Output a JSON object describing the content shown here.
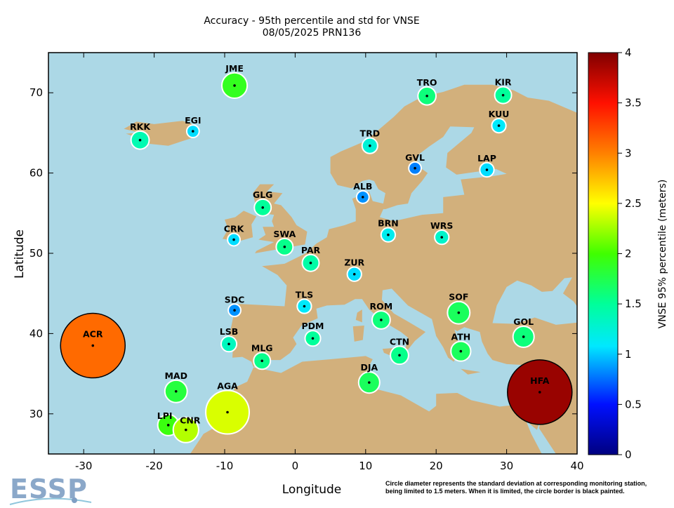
{
  "title": "Accuracy - 95th percentile and std for VNSE",
  "subtitle": "08/05/2025 PRN136",
  "logo_text": "ESSP",
  "footnote_line1": "Circle diameter represents the standard deviation at corresponding monitoring station,",
  "footnote_line2": "being limited to 1.5 meters. When it is limited, the circle border is black painted.",
  "chart_data": {
    "type": "scatter",
    "xlabel": "Longitude",
    "ylabel": "Latitude",
    "colorbar_label": "VNSE 95% percentile (meters)",
    "xlim": [
      -35,
      40
    ],
    "ylim": [
      25,
      75
    ],
    "x_ticks": [
      -30,
      -20,
      -10,
      0,
      10,
      20,
      30,
      40
    ],
    "y_ticks": [
      30,
      40,
      50,
      60,
      70
    ],
    "colorbar_range": [
      0,
      4
    ],
    "colorbar_ticks": [
      "0",
      "0.5",
      "1",
      "1.5",
      "2",
      "2.5",
      "3",
      "3.5",
      "4"
    ],
    "colormap": "jet",
    "std_limit_m": 1.5,
    "colors": {
      "sea": "#acd8e6",
      "land": "#d2b07c"
    },
    "stations": [
      {
        "code": "JME",
        "lon": -8.6,
        "lat": 70.9,
        "vnse95": 1.9,
        "std": 0.59,
        "limited": false
      },
      {
        "code": "TRO",
        "lon": 18.7,
        "lat": 69.6,
        "vnse95": 1.6,
        "std": 0.42,
        "limited": false
      },
      {
        "code": "KIR",
        "lon": 29.5,
        "lat": 69.7,
        "vnse95": 1.5,
        "std": 0.39,
        "limited": false
      },
      {
        "code": "KUU",
        "lon": 28.9,
        "lat": 65.9,
        "vnse95": 1.1,
        "std": 0.33,
        "limited": false
      },
      {
        "code": "EGI",
        "lon": -14.5,
        "lat": 65.2,
        "vnse95": 1.05,
        "std": 0.29,
        "limited": false
      },
      {
        "code": "RKK",
        "lon": -22.0,
        "lat": 64.1,
        "vnse95": 1.4,
        "std": 0.42,
        "limited": false
      },
      {
        "code": "TRD",
        "lon": 10.6,
        "lat": 63.4,
        "vnse95": 1.25,
        "std": 0.36,
        "limited": false
      },
      {
        "code": "GVL",
        "lon": 17.0,
        "lat": 60.6,
        "vnse95": 0.8,
        "std": 0.29,
        "limited": false
      },
      {
        "code": "LAP",
        "lon": 27.2,
        "lat": 60.4,
        "vnse95": 1.05,
        "std": 0.33,
        "limited": false
      },
      {
        "code": "ALB",
        "lon": 9.6,
        "lat": 57.0,
        "vnse95": 0.85,
        "std": 0.29,
        "limited": false
      },
      {
        "code": "GLG",
        "lon": -4.6,
        "lat": 55.7,
        "vnse95": 1.5,
        "std": 0.39,
        "limited": false
      },
      {
        "code": "BRN",
        "lon": 13.2,
        "lat": 52.3,
        "vnse95": 1.15,
        "std": 0.33,
        "limited": false
      },
      {
        "code": "WRS",
        "lon": 20.8,
        "lat": 52.0,
        "vnse95": 1.3,
        "std": 0.33,
        "limited": false
      },
      {
        "code": "CRK",
        "lon": -8.7,
        "lat": 51.7,
        "vnse95": 1.05,
        "std": 0.29,
        "limited": false
      },
      {
        "code": "SWA",
        "lon": -1.5,
        "lat": 50.8,
        "vnse95": 1.55,
        "std": 0.39,
        "limited": false
      },
      {
        "code": "PAR",
        "lon": 2.2,
        "lat": 48.8,
        "vnse95": 1.45,
        "std": 0.39,
        "limited": false
      },
      {
        "code": "ZUR",
        "lon": 8.4,
        "lat": 47.4,
        "vnse95": 1.05,
        "std": 0.33,
        "limited": false
      },
      {
        "code": "TLS",
        "lon": 1.3,
        "lat": 43.4,
        "vnse95": 1.1,
        "std": 0.33,
        "limited": false
      },
      {
        "code": "SDC",
        "lon": -8.6,
        "lat": 42.9,
        "vnse95": 0.85,
        "std": 0.29,
        "limited": false
      },
      {
        "code": "SOF",
        "lon": 23.2,
        "lat": 42.6,
        "vnse95": 1.7,
        "std": 0.52,
        "limited": false
      },
      {
        "code": "ROM",
        "lon": 12.2,
        "lat": 41.7,
        "vnse95": 1.6,
        "std": 0.42,
        "limited": false
      },
      {
        "code": "GOL",
        "lon": 32.4,
        "lat": 39.6,
        "vnse95": 1.6,
        "std": 0.49,
        "limited": false
      },
      {
        "code": "LSB",
        "lon": -9.4,
        "lat": 38.7,
        "vnse95": 1.35,
        "std": 0.36,
        "limited": false
      },
      {
        "code": "PDM",
        "lon": 2.5,
        "lat": 39.4,
        "vnse95": 1.5,
        "std": 0.36,
        "limited": false
      },
      {
        "code": "ATH",
        "lon": 23.5,
        "lat": 37.8,
        "vnse95": 1.7,
        "std": 0.46,
        "limited": false
      },
      {
        "code": "CTN",
        "lon": 14.8,
        "lat": 37.3,
        "vnse95": 1.55,
        "std": 0.42,
        "limited": false
      },
      {
        "code": "MLG",
        "lon": -4.7,
        "lat": 36.6,
        "vnse95": 1.55,
        "std": 0.39,
        "limited": false
      },
      {
        "code": "DJA",
        "lon": 10.5,
        "lat": 33.9,
        "vnse95": 1.7,
        "std": 0.49,
        "limited": false
      },
      {
        "code": "MAD",
        "lon": -16.9,
        "lat": 32.8,
        "vnse95": 1.8,
        "std": 0.52,
        "limited": false
      },
      {
        "code": "AGA",
        "lon": -9.6,
        "lat": 30.2,
        "vnse95": 2.4,
        "std": 1.01,
        "limited": false
      },
      {
        "code": "LPI",
        "lon": -18.0,
        "lat": 28.6,
        "vnse95": 1.95,
        "std": 0.49,
        "limited": false
      },
      {
        "code": "CNR",
        "lon": -15.5,
        "lat": 28.0,
        "vnse95": 2.3,
        "std": 0.59,
        "limited": false
      },
      {
        "code": "ACR",
        "lon": -28.7,
        "lat": 38.5,
        "vnse95": 3.1,
        "std": 1.5,
        "limited": true
      },
      {
        "code": "HFA",
        "lon": 34.7,
        "lat": 32.7,
        "vnse95": 3.9,
        "std": 1.5,
        "limited": true
      }
    ]
  }
}
